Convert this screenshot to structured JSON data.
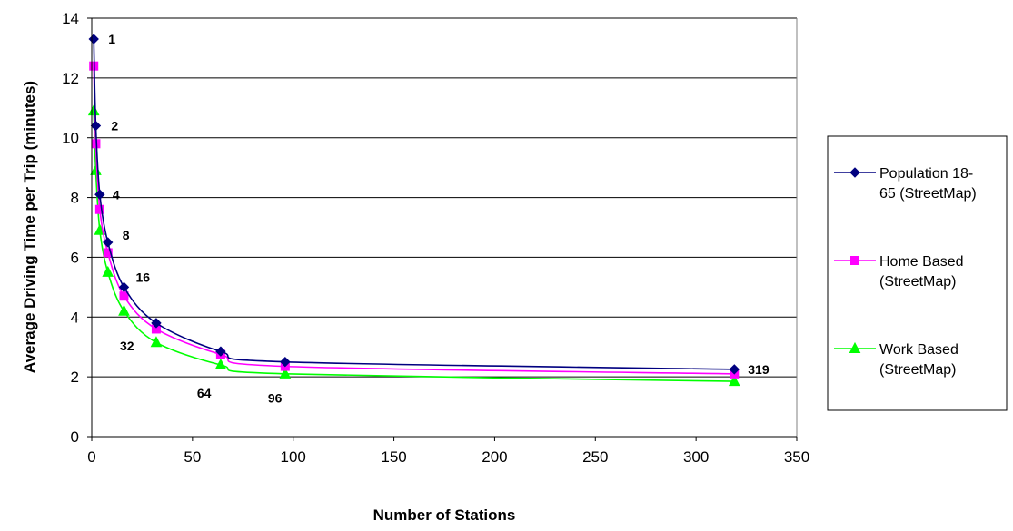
{
  "chart_data": {
    "type": "line",
    "xlabel": "Number of Stations",
    "ylabel": "Average Driving Time per Trip (minutes)",
    "xlim": [
      0,
      350
    ],
    "ylim": [
      0,
      14
    ],
    "x_ticks": [
      "0",
      "50",
      "100",
      "150",
      "200",
      "250",
      "300",
      "350"
    ],
    "y_ticks": [
      "0",
      "2",
      "4",
      "6",
      "8",
      "10",
      "12",
      "14"
    ],
    "grid": "horizontal major gridlines",
    "legend_position": "right",
    "series": [
      {
        "name": "Population 18-65 (StreetMap)",
        "legend_lines": [
          "Population 18-",
          "65 (StreetMap)"
        ],
        "color": "#000080",
        "marker": "diamond",
        "x": [
          1,
          2,
          4,
          8,
          16,
          32,
          64,
          96,
          319
        ],
        "y": [
          13.3,
          10.4,
          8.1,
          6.5,
          5.0,
          3.8,
          2.85,
          2.5,
          2.25
        ]
      },
      {
        "name": "Home Based (StreetMap)",
        "legend_lines": [
          "Home Based",
          "(StreetMap)"
        ],
        "color": "#ff00ff",
        "marker": "square",
        "x": [
          1,
          2,
          4,
          8,
          16,
          32,
          64,
          96,
          319
        ],
        "y": [
          12.4,
          9.8,
          7.6,
          6.15,
          4.7,
          3.6,
          2.75,
          2.35,
          2.1
        ]
      },
      {
        "name": "Work Based (StreetMap)",
        "legend_lines": [
          "Work Based",
          "(StreetMap)"
        ],
        "color": "#00ff00",
        "marker": "triangle",
        "x": [
          1,
          2,
          4,
          8,
          16,
          32,
          64,
          96,
          319
        ],
        "y": [
          10.9,
          8.9,
          6.9,
          5.5,
          4.2,
          3.15,
          2.4,
          2.1,
          1.85
        ]
      }
    ],
    "annotations": [
      {
        "text": "1",
        "x": 1,
        "y": 13.3,
        "dx": 16,
        "dy": 5
      },
      {
        "text": "2",
        "x": 2,
        "y": 10.4,
        "dx": 17,
        "dy": 5
      },
      {
        "text": "4",
        "x": 4,
        "y": 8.1,
        "dx": 14,
        "dy": 5
      },
      {
        "text": "8",
        "x": 8,
        "y": 6.5,
        "dx": 16,
        "dy": -3
      },
      {
        "text": "16",
        "x": 16,
        "y": 5.0,
        "dx": 13,
        "dy": -6
      },
      {
        "text": "32",
        "x": 32,
        "y": 3.8,
        "dx": -40,
        "dy": 30
      },
      {
        "text": "64",
        "x": 64,
        "y": 2.85,
        "dx": -26,
        "dy": 51
      },
      {
        "text": "96",
        "x": 96,
        "y": 2.5,
        "dx": -19,
        "dy": 45
      },
      {
        "text": "319",
        "x": 319,
        "y": 2.25,
        "dx": 15,
        "dy": 5
      }
    ]
  }
}
